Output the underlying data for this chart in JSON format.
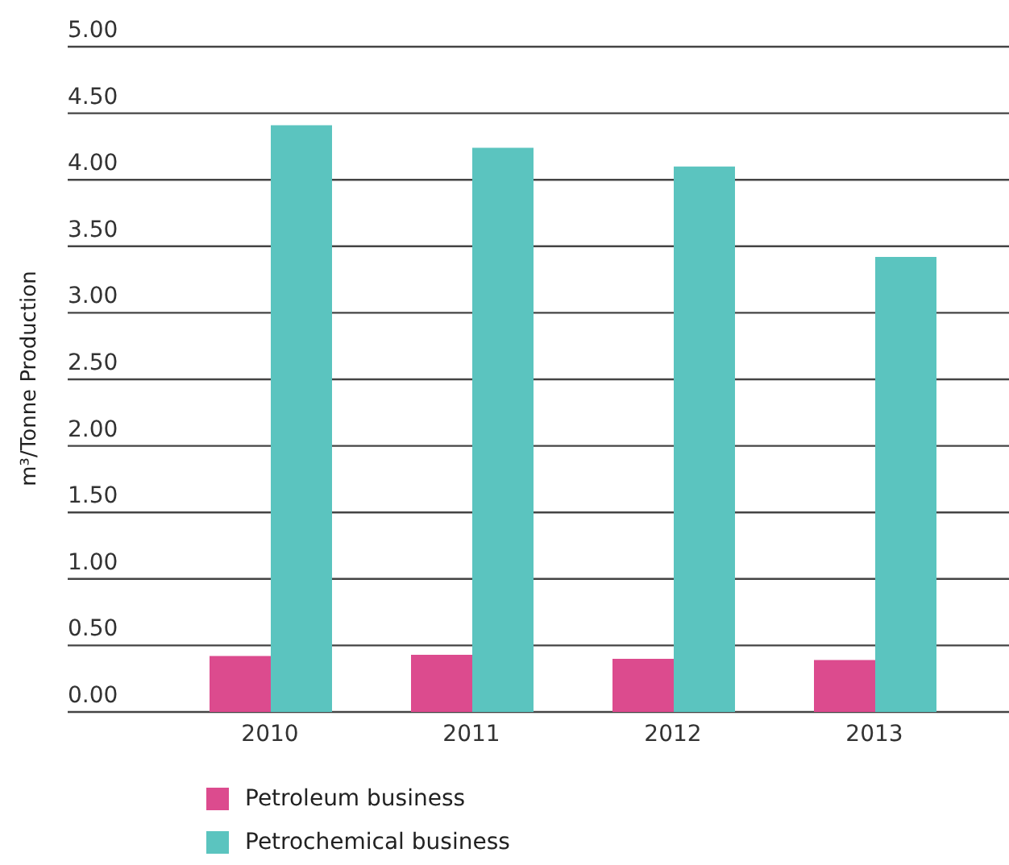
{
  "chart_data": {
    "type": "bar",
    "ylabel": "m³/Tonne Production",
    "categories": [
      "2010",
      "2011",
      "2012",
      "2013"
    ],
    "series": [
      {
        "name": "Petroleum business",
        "color": "#dc4b8e",
        "values": [
          0.42,
          0.43,
          0.4,
          0.39
        ]
      },
      {
        "name": "Petrochemical business",
        "color": "#5bc4bf",
        "values": [
          4.41,
          4.24,
          4.1,
          3.42
        ]
      }
    ],
    "ylim": [
      0,
      5
    ],
    "yticks": [
      {
        "value": 0,
        "label": "0.00"
      },
      {
        "value": 0.5,
        "label": "0.50"
      },
      {
        "value": 1,
        "label": "1.00"
      },
      {
        "value": 1.5,
        "label": "1.50"
      },
      {
        "value": 2,
        "label": "2.00"
      },
      {
        "value": 2.5,
        "label": "2.50"
      },
      {
        "value": 3,
        "label": "3.00"
      },
      {
        "value": 3.5,
        "label": "3.50"
      },
      {
        "value": 4,
        "label": "4.00"
      },
      {
        "value": 4.5,
        "label": "4.50"
      },
      {
        "value": 5,
        "label": "5.00"
      }
    ],
    "grid": "y",
    "legend": "bottom left"
  }
}
